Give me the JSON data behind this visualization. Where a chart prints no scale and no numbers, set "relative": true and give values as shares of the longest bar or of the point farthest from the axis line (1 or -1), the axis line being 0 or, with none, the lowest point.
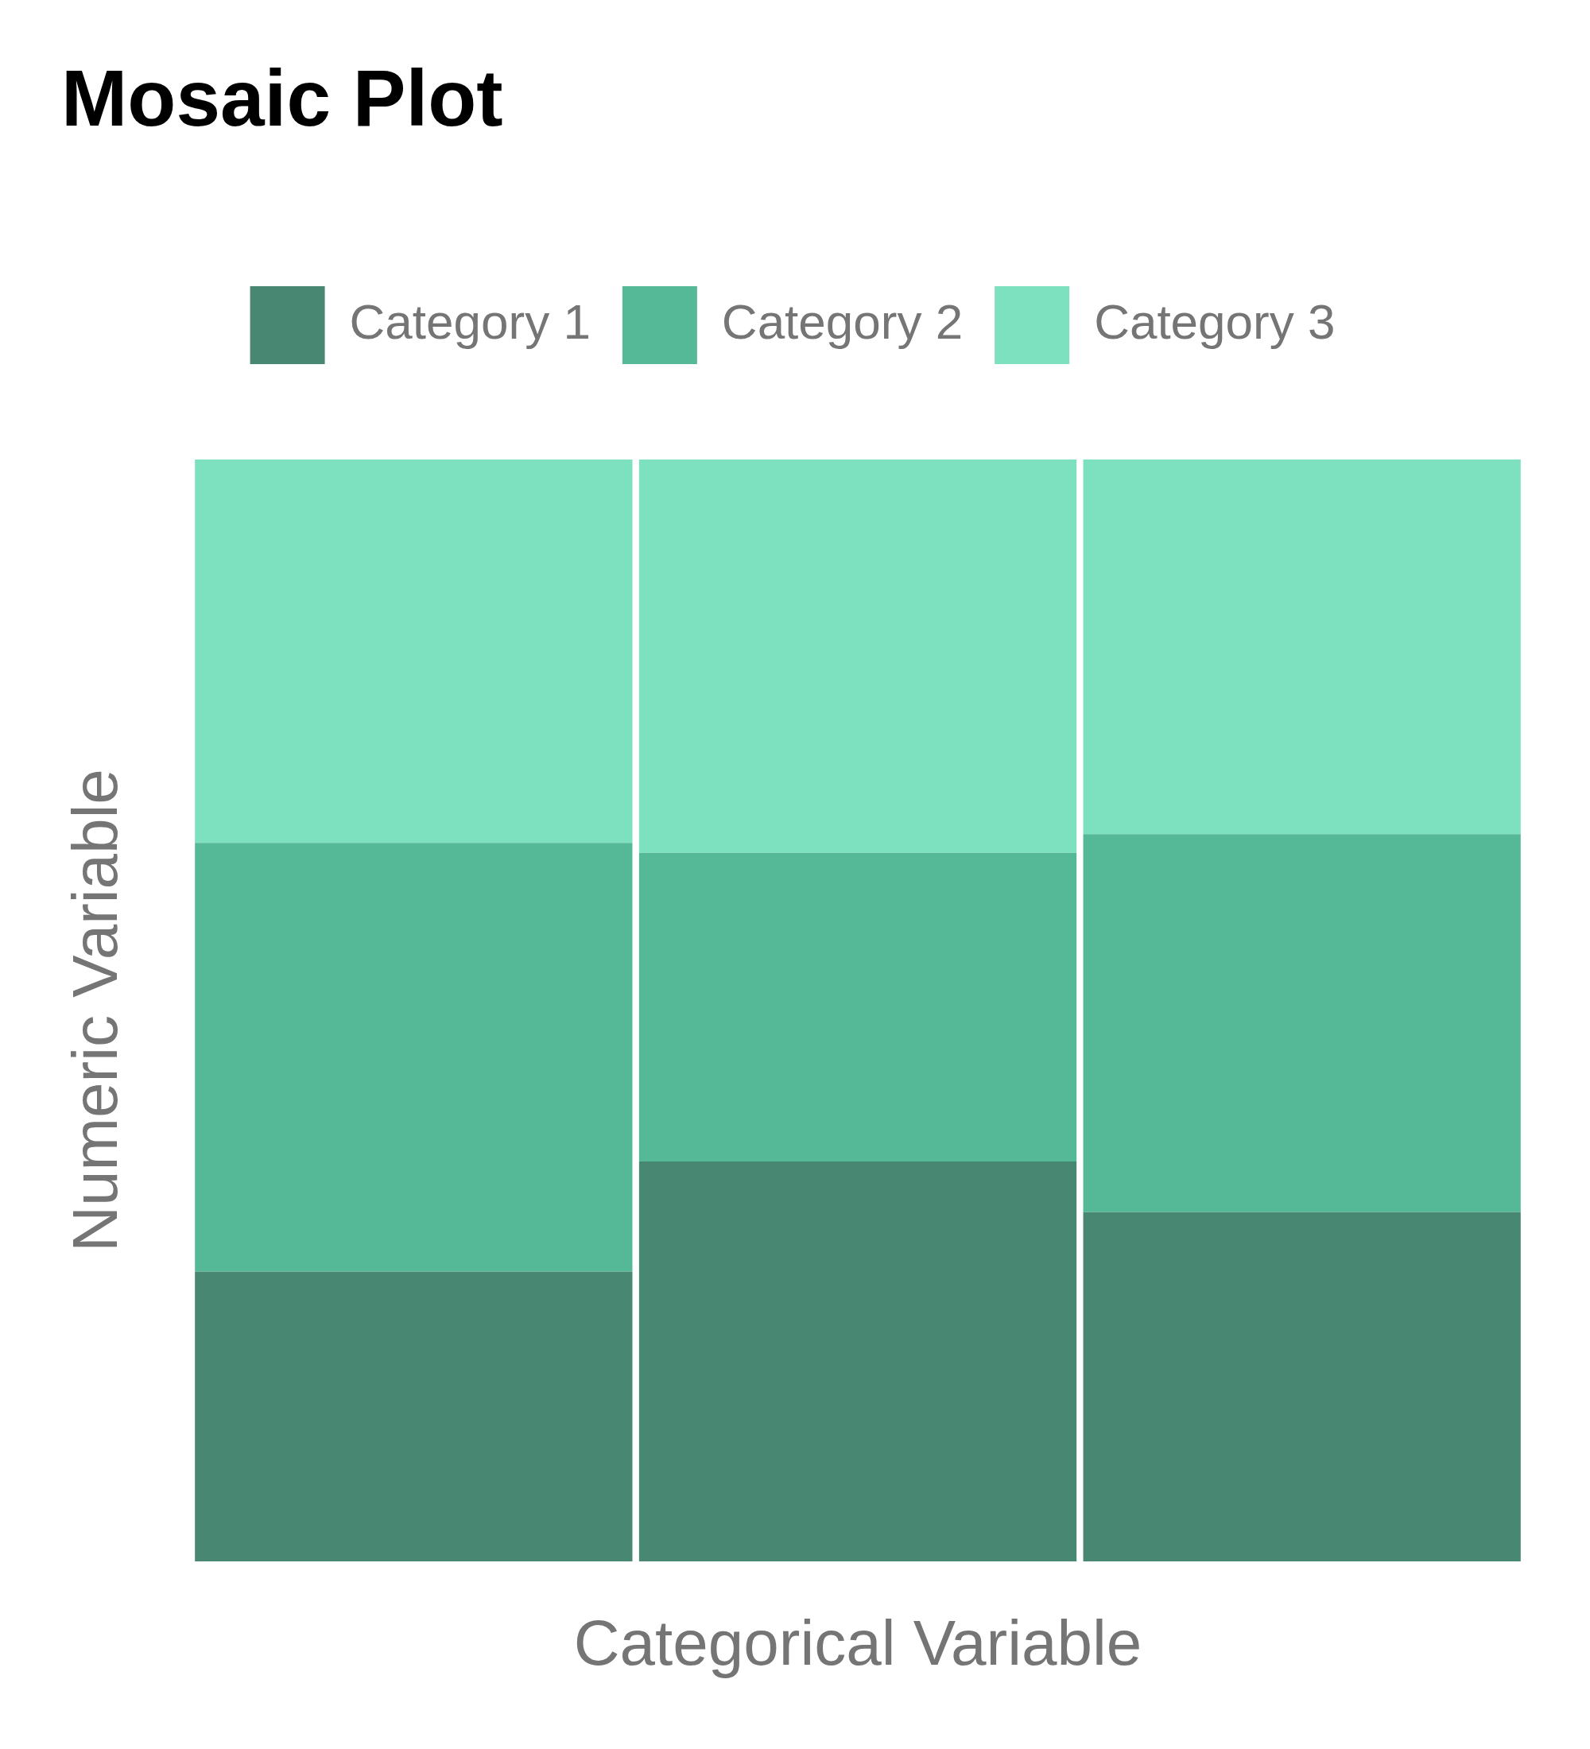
{
  "chart_data": {
    "type": "bar",
    "title": "Mosaic Plot",
    "xlabel": "Categorical Variable",
    "ylabel": "Numeric Variable",
    "categories": [
      null,
      null,
      null
    ],
    "stacked": true,
    "relative": true,
    "legend": "top",
    "series": [
      {
        "name": "Category 1",
        "color": "#488872",
        "values": [
          0.263,
          0.363,
          0.317
        ]
      },
      {
        "name": "Category 2",
        "color": "#55b997",
        "values": [
          0.389,
          0.28,
          0.343
        ]
      },
      {
        "name": "Category 3",
        "color": "#7de0be",
        "values": [
          0.348,
          0.357,
          0.34
        ]
      }
    ]
  }
}
